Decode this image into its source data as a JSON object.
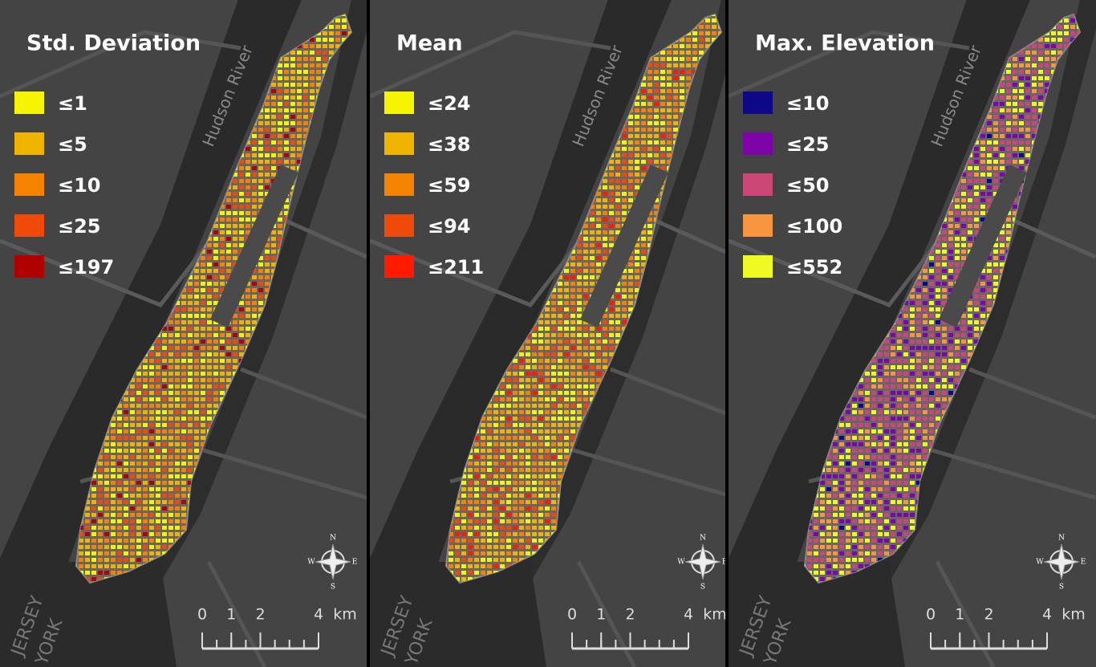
{
  "panels": [
    {
      "title": "Std. Deviation",
      "legend": [
        {
          "label": "≤1",
          "color": "#f5f500"
        },
        {
          "label": "≤5",
          "color": "#f0b400"
        },
        {
          "label": "≤10",
          "color": "#f58200"
        },
        {
          "label": "≤25",
          "color": "#f04a0a"
        },
        {
          "label": "≤197",
          "color": "#b00000"
        }
      ]
    },
    {
      "title": "Mean",
      "legend": [
        {
          "label": "≤24",
          "color": "#f5f500"
        },
        {
          "label": "≤38",
          "color": "#f0b400"
        },
        {
          "label": "≤59",
          "color": "#f58200"
        },
        {
          "label": "≤94",
          "color": "#f04a0a"
        },
        {
          "label": "≤211",
          "color": "#ff1a00"
        }
      ]
    },
    {
      "title": "Max. Elevation",
      "legend": [
        {
          "label": "≤10",
          "color": "#0d0887"
        },
        {
          "label": "≤25",
          "color": "#7e03a8"
        },
        {
          "label": "≤50",
          "color": "#cc4778"
        },
        {
          "label": "≤100",
          "color": "#f89540"
        },
        {
          "label": "≤552",
          "color": "#f0f921"
        }
      ]
    }
  ],
  "map_labels": {
    "river": "Hudson River",
    "state_1": "JERSEY",
    "state_2": "YORK"
  },
  "compass": {
    "n": "N",
    "e": "E",
    "s": "S",
    "w": "W"
  },
  "scale_bar": {
    "ticks": [
      0,
      1,
      2,
      4
    ],
    "unit": "km"
  }
}
